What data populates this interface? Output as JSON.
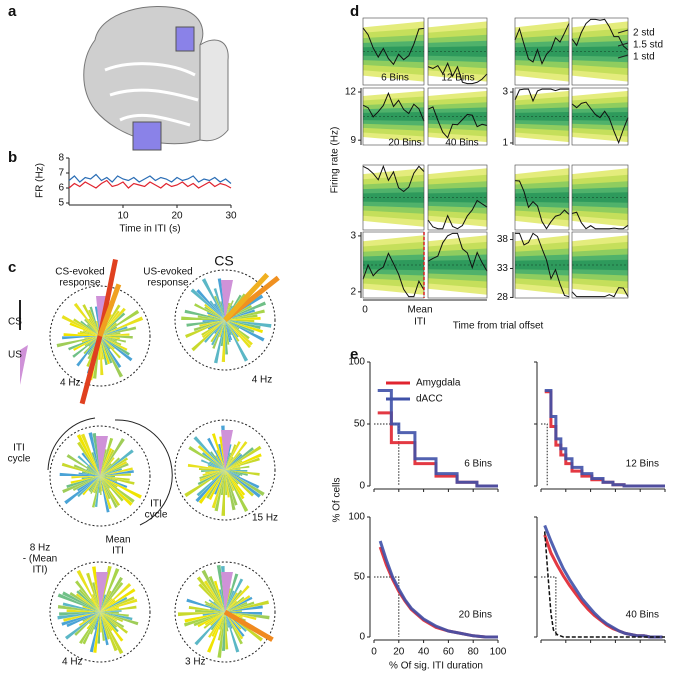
{
  "panel_labels": [
    "a",
    "b",
    "c",
    "d",
    "e"
  ],
  "b": {
    "ylabel": "FR (Hz)",
    "xlabel": "Time in ITI (s)",
    "ylim": [
      5,
      8
    ],
    "yticks": [
      5,
      6,
      7,
      8
    ],
    "xlim": [
      0,
      30
    ],
    "xticks": [
      10,
      20,
      30
    ],
    "x": [
      0,
      1,
      2,
      3,
      4,
      5,
      6,
      7,
      8,
      9,
      10,
      11,
      12,
      13,
      14,
      15,
      16,
      17,
      18,
      19,
      20,
      21,
      22,
      23,
      24,
      25,
      26,
      27,
      28,
      29,
      30
    ],
    "series": [
      {
        "color": "#2a6db5",
        "values": [
          6.5,
          6.8,
          6.4,
          6.7,
          6.6,
          6.9,
          6.5,
          6.7,
          6.4,
          6.8,
          6.6,
          6.5,
          6.7,
          6.4,
          6.6,
          6.8,
          6.5,
          6.7,
          6.6,
          6.4,
          6.7,
          6.5,
          6.6,
          6.8,
          6.4,
          6.6,
          6.5,
          6.7,
          6.4,
          6.6,
          6.3
        ]
      },
      {
        "color": "#e0242f",
        "values": [
          6.0,
          6.3,
          6.1,
          6.4,
          6.2,
          6.0,
          6.3,
          6.5,
          6.1,
          6.2,
          6.4,
          6.0,
          6.3,
          6.2,
          6.1,
          6.4,
          6.2,
          6.0,
          6.3,
          6.1,
          6.2,
          6.4,
          6.1,
          6.3,
          6.0,
          6.2,
          6.4,
          6.1,
          6.3,
          6.2,
          6.0
        ]
      }
    ]
  },
  "c": {
    "cs_evoked": [
      "CS-evoked",
      "response"
    ],
    "us_evoked": [
      "US-evoked",
      "response"
    ],
    "cs": "CS",
    "us": "US",
    "rose1_rate": "4 Hz",
    "rose2_title": "CS",
    "rose2_rate": "4 Hz",
    "iti_cycle_left": [
      "ITI",
      "cycle"
    ],
    "iti_cycle_right": [
      "ITI",
      "cycle"
    ],
    "rose3_rate": [
      "8 Hz",
      "- (Mean",
      "ITI)"
    ],
    "mean_iti": [
      "Mean",
      "ITI"
    ],
    "rose4_rate": "15 Hz",
    "rose5_rate": "4 Hz",
    "rose6_rate": "3 Hz"
  },
  "d": {
    "ylabel": "Firing rate (Hz)",
    "xlabel": "Time from trial offset",
    "legend": [
      "2 std",
      "1.5 std",
      "1 std"
    ],
    "bin_labels": [
      "6 Bins",
      "12 Bins",
      "20 Bins",
      "40 Bins"
    ],
    "start_label": 0,
    "mean_label": [
      "Mean",
      "ITI"
    ],
    "axes": [
      {
        "ylim": [
          8.7,
          12.25
        ],
        "yticks": [
          9,
          12
        ]
      },
      {
        "ylim": [
          0.92,
          3.16
        ],
        "yticks": [
          1,
          3
        ]
      },
      {
        "ylim": [
          1.89,
          3.07
        ],
        "yticks": [
          2,
          3
        ]
      },
      {
        "ylim": [
          27.9,
          39.3
        ],
        "yticks": [
          28,
          33,
          38
        ]
      }
    ]
  },
  "e": {
    "ylabel": "% Of cells",
    "xlabel": "% Of sig. ITI duration",
    "xlim": [
      0,
      100
    ],
    "ylim": [
      0,
      100
    ],
    "xticks": [
      0,
      20,
      40,
      60,
      80,
      100
    ],
    "yticks": [
      0,
      50,
      100
    ],
    "legend": [
      {
        "name": "Amygdala",
        "color": "#e0242f"
      },
      {
        "name": "dACC",
        "color": "#3f51a8"
      }
    ],
    "plots": [
      {
        "label": "6 Bins",
        "step": true,
        "ref": [
          20,
          50
        ],
        "x": [
          3,
          14,
          20,
          33,
          50,
          67,
          83,
          100
        ],
        "values": [
          [
            59,
            35,
            35,
            18,
            8,
            3,
            0,
            0
          ],
          [
            77,
            50,
            43,
            22,
            10,
            3,
            0,
            0
          ]
        ]
      },
      {
        "label": "12 Bins",
        "step": true,
        "ref": [
          5,
          50
        ],
        "x": [
          3,
          8,
          12,
          16,
          20,
          25,
          33,
          41,
          50,
          58,
          67,
          100
        ],
        "values": [
          [
            76,
            48,
            33,
            25,
            18,
            12,
            8,
            5,
            3,
            1,
            0,
            0
          ],
          [
            77,
            56,
            38,
            30,
            22,
            15,
            10,
            6,
            3,
            1,
            0,
            0
          ]
        ]
      },
      {
        "label": "20 Bins",
        "step": false,
        "ref": [
          20,
          50
        ],
        "x": [
          5,
          10,
          15,
          20,
          25,
          30,
          40,
          50,
          60,
          70,
          80,
          90,
          100
        ],
        "values": [
          [
            75,
            60,
            48,
            38,
            30,
            23,
            14,
            8,
            5,
            3,
            1,
            0,
            0
          ],
          [
            80,
            64,
            50,
            40,
            31,
            24,
            15,
            9,
            5,
            3,
            1,
            0,
            0
          ]
        ]
      },
      {
        "label": "40 Bins",
        "step": false,
        "ref": [
          12,
          50
        ],
        "x": [
          3,
          8,
          13,
          18,
          23,
          28,
          33,
          38,
          43,
          48,
          53,
          58,
          63,
          68,
          73,
          78,
          83,
          88,
          93,
          98
        ],
        "values": [
          [
            85,
            70,
            60,
            51,
            43,
            36,
            29,
            23,
            18,
            14,
            10,
            7,
            5,
            3,
            2,
            1,
            1,
            0,
            0,
            0
          ],
          [
            93,
            80,
            68,
            57,
            48,
            40,
            32,
            26,
            20,
            15,
            11,
            8,
            5,
            3,
            2,
            1,
            1,
            0,
            0,
            0
          ]
        ],
        "null_x": [
          3,
          5,
          8,
          10,
          13,
          18,
          100
        ],
        "null_values": [
          88,
          60,
          20,
          6,
          2,
          0,
          0
        ]
      }
    ]
  }
}
